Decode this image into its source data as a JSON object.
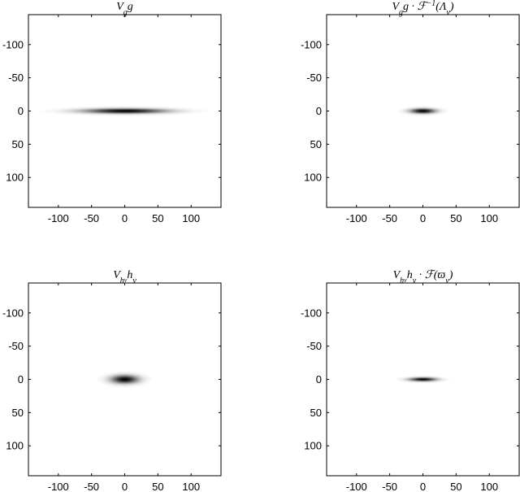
{
  "chart_data": [
    {
      "type": "heatmap",
      "title": "V_g g",
      "title_html": "V<tspan baseline-shift=\"sub\" font-size=\"10\">g</tspan>g",
      "xlim": [
        -145,
        145
      ],
      "ylim": [
        -145,
        145
      ],
      "y_reversed": true,
      "xticks": [
        -100,
        -50,
        0,
        50,
        100
      ],
      "yticks": [
        -100,
        -50,
        0,
        50,
        100
      ],
      "colormap": "gray-inverted",
      "blob": {
        "center": [
          0,
          0
        ],
        "sigma_x": 42,
        "sigma_y": 2.6,
        "peak": 1.0
      }
    },
    {
      "type": "heatmap",
      "title": "V_g g · F^-1(Λ_ν)",
      "xlim": [
        -145,
        145
      ],
      "ylim": [
        -145,
        145
      ],
      "y_reversed": true,
      "xticks": [
        -100,
        -50,
        0,
        50,
        100
      ],
      "yticks": [
        -100,
        -50,
        0,
        50,
        100
      ],
      "colormap": "gray-inverted",
      "blob": {
        "center": [
          0,
          0
        ],
        "sigma_x": 13,
        "sigma_y": 2.6,
        "peak": 1.0
      }
    },
    {
      "type": "heatmap",
      "title": "V_hν hν",
      "xlim": [
        -145,
        145
      ],
      "ylim": [
        -145,
        145
      ],
      "y_reversed": true,
      "xticks": [
        -100,
        -50,
        0,
        50,
        100
      ],
      "yticks": [
        -100,
        -50,
        0,
        50,
        100
      ],
      "colormap": "gray-inverted",
      "blob": {
        "center": [
          0,
          0
        ],
        "sigma_x": 14,
        "sigma_y": 4.3,
        "peak": 1.0
      }
    },
    {
      "type": "heatmap",
      "title": "V_hν hν · F(ϖ_ν)",
      "xlim": [
        -145,
        145
      ],
      "ylim": [
        -145,
        145
      ],
      "y_reversed": true,
      "xticks": [
        -100,
        -50,
        0,
        50,
        100
      ],
      "yticks": [
        -100,
        -50,
        0,
        50,
        100
      ],
      "colormap": "gray-inverted",
      "blob": {
        "center": [
          0,
          0
        ],
        "sigma_x": 14,
        "sigma_y": 2.0,
        "peak": 1.0
      }
    }
  ]
}
